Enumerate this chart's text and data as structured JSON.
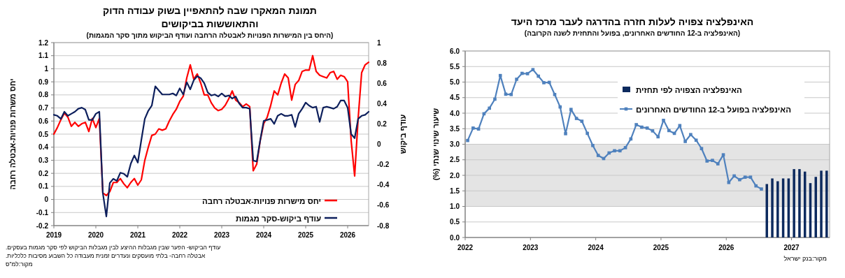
{
  "chart_data": [
    {
      "type": "line",
      "title": "תמונת המאקרו שבה להתאפיין בשוק עבודה הדוק והתאוששות בביקושים",
      "subtitle": "(היחס בין המישרות הפנויות לאבטלה הרחבה ועודף הביקוש מתוך סקר המגמות)",
      "ylabel": "יחס משרות פנויות-אבטלה רחבה",
      "y2label": "עודף ביקוש",
      "x": [
        "2019-01",
        "2019-02",
        "2019-03",
        "2019-04",
        "2019-05",
        "2019-06",
        "2019-07",
        "2019-08",
        "2019-09",
        "2019-10",
        "2019-11",
        "2019-12",
        "2020-01",
        "2020-02",
        "2020-03",
        "2020-04",
        "2020-05",
        "2020-06",
        "2020-07",
        "2020-08",
        "2020-09",
        "2020-10",
        "2020-11",
        "2020-12",
        "2021-01",
        "2021-02",
        "2021-03",
        "2021-04",
        "2021-05",
        "2021-06",
        "2021-07",
        "2021-08",
        "2021-09",
        "2021-10",
        "2021-11",
        "2021-12",
        "2022-01",
        "2022-02",
        "2022-03",
        "2022-04",
        "2022-05",
        "2022-06",
        "2022-07",
        "2022-08",
        "2022-09",
        "2022-10",
        "2022-11",
        "2022-12",
        "2023-01",
        "2023-02",
        "2023-03",
        "2023-04",
        "2023-05",
        "2023-06",
        "2023-07",
        "2023-08",
        "2023-09",
        "2023-10",
        "2023-11",
        "2023-12",
        "2024-01",
        "2024-02",
        "2024-03",
        "2024-04",
        "2024-05",
        "2024-06",
        "2024-07",
        "2024-08",
        "2024-09",
        "2024-10",
        "2024-11",
        "2024-12",
        "2025-01",
        "2025-02",
        "2025-03",
        "2025-04",
        "2025-05",
        "2025-06",
        "2025-07",
        "2025-08",
        "2025-09",
        "2025-10",
        "2025-11",
        "2025-12",
        "2026-01",
        "2026-02",
        "2026-03",
        "2026-04",
        "2026-05",
        "2026-06",
        "2026-07"
      ],
      "series": [
        {
          "name": "יחס מישרות פנויות-אבטלה רחבה",
          "color": "#ff0000",
          "values": [
            0.5,
            0.55,
            0.61,
            0.66,
            0.63,
            0.56,
            0.59,
            0.56,
            0.58,
            0.59,
            0.52,
            0.62,
            0.55,
            0.62,
            0.05,
            0.03,
            0.06,
            0.13,
            0.13,
            0.16,
            0.12,
            0.09,
            0.13,
            0.16,
            0.11,
            0.15,
            0.3,
            0.4,
            0.49,
            0.5,
            0.54,
            0.53,
            0.54,
            0.6,
            0.65,
            0.69,
            0.75,
            0.79,
            0.93,
            1.03,
            0.92,
            0.96,
            0.89,
            0.8,
            0.8,
            0.74,
            0.7,
            0.68,
            0.69,
            0.72,
            0.77,
            0.83,
            0.76,
            0.74,
            0.71,
            0.73,
            0.71,
            0.22,
            0.27,
            0.45,
            0.58,
            0.63,
            0.72,
            0.83,
            0.8,
            0.89,
            0.96,
            0.93,
            0.76,
            0.88,
            0.91,
            0.98,
            0.99,
            0.99,
            1.1,
            0.98,
            0.95,
            0.94,
            0.93,
            0.97,
            0.98,
            0.92,
            0.95,
            0.94,
            0.9,
            0.45,
            0.18,
            0.62,
            0.97,
            1.03,
            1.05
          ]
        },
        {
          "name": "עודף ביקוש-סקר מגמות",
          "color": "#0d1f5c",
          "axis": "y2",
          "values": [
            0.29,
            0.28,
            0.25,
            0.32,
            0.28,
            0.3,
            0.32,
            0.35,
            0.36,
            0.34,
            0.24,
            0.24,
            0.3,
            0.32,
            -0.48,
            -0.71,
            -0.38,
            -0.34,
            -0.36,
            -0.28,
            -0.29,
            -0.32,
            -0.19,
            -0.11,
            -0.18,
            0.04,
            0.25,
            0.33,
            0.38,
            0.57,
            0.53,
            0.49,
            0.49,
            0.49,
            0.5,
            0.48,
            0.55,
            0.49,
            0.61,
            0.54,
            0.63,
            0.67,
            0.65,
            0.6,
            0.51,
            0.48,
            0.49,
            0.47,
            0.5,
            0.47,
            0.48,
            0.45,
            0.47,
            0.4,
            0.36,
            0.36,
            0.35,
            -0.16,
            -0.17,
            0.04,
            0.23,
            0.24,
            0.25,
            0.2,
            0.28,
            0.3,
            0.28,
            0.28,
            0.29,
            0.17,
            0.3,
            0.35,
            0.41,
            0.38,
            0.36,
            0.37,
            0.22,
            0.36,
            0.37,
            0.36,
            0.35,
            0.37,
            0.43,
            0.43,
            0.36,
            0.1,
            0.06,
            0.25,
            0.28,
            0.29,
            0.32
          ]
        }
      ],
      "xlim": [
        "2019-01",
        "2026-07"
      ],
      "xticks": [
        "2019",
        "2020",
        "2021",
        "2022",
        "2023",
        "2024",
        "2025",
        "2026"
      ],
      "ylim": [
        -0.2,
        1.2
      ],
      "yticks": [
        -0.2,
        -0.1,
        0,
        0.1,
        0.2,
        0.3,
        0.4,
        0.5,
        0.6,
        0.7,
        0.8,
        0.9,
        1,
        1.1,
        1.2
      ],
      "y2lim": [
        -0.8,
        1
      ],
      "y2ticks": [
        -0.8,
        -0.6,
        -0.4,
        -0.2,
        0,
        0.2,
        0.4,
        0.6,
        0.8,
        1
      ],
      "grid": "y",
      "legend": "bottom right",
      "annotations": [
        "עודף הביקוש- הפער שבין מגבלות ההיצע לבין מגבלות הביקוש לפי סקר מגמות בעסקים.",
        "אבטלה רחבה- בלתי מועסקים ונעדרים זמנית מעבודה כל השבוע מסיבות כלכליות.",
        "מקור:למ\"ס"
      ]
    },
    {
      "type": "line",
      "title": "האינפלציה צפויה לעלות חזרה בהדרגה לעבר מרכז היעד",
      "subtitle": "(האינפלציה ב-12 החודשים האחרונים, בפועל והתחזית לשנה הקרובה)",
      "ylabel": "שיעור שינוי שנתי (%)",
      "series": [
        {
          "type": "bar",
          "name": "האינפלציה הצפויה לפי תחזית",
          "color": "#0d2a5e",
          "x": [
            "2026-08-15",
            "2026-09-15",
            "2026-10-15",
            "2026-11-15",
            "2026-12-15",
            "2027-01-15",
            "2027-02-15",
            "2027-03-15",
            "2027-04-15",
            "2027-05-15",
            "2027-06-15",
            "2027-07-15"
          ],
          "values": [
            1.72,
            1.9,
            1.81,
            1.9,
            1.9,
            2.2,
            2.2,
            2.12,
            1.75,
            1.95,
            2.15,
            2.15
          ]
        },
        {
          "name": "האינפלציה בפועל ב-12 החודשים האחרונים",
          "color": "#4f81bd",
          "x": [
            "2022-01-15",
            "2022-02-15",
            "2022-03-15",
            "2022-04-15",
            "2022-05-15",
            "2022-06-15",
            "2022-07-15",
            "2022-08-15",
            "2022-09-15",
            "2022-10-15",
            "2022-11-15",
            "2022-12-15",
            "2023-01-15",
            "2023-02-15",
            "2023-03-15",
            "2023-04-15",
            "2023-05-15",
            "2023-06-15",
            "2023-07-15",
            "2023-08-15",
            "2023-09-15",
            "2023-10-15",
            "2023-11-15",
            "2023-12-15",
            "2024-01-15",
            "2024-02-15",
            "2024-03-15",
            "2024-04-15",
            "2024-05-15",
            "2024-06-15",
            "2024-07-15",
            "2024-08-15",
            "2024-09-15",
            "2024-10-15",
            "2024-11-15",
            "2024-12-15",
            "2025-01-15",
            "2025-02-15",
            "2025-03-15",
            "2025-04-15",
            "2025-05-15",
            "2025-06-15",
            "2025-07-15",
            "2025-08-15",
            "2025-09-15",
            "2025-10-15",
            "2025-11-15",
            "2025-12-15",
            "2026-01-15",
            "2026-02-15",
            "2026-03-15",
            "2026-04-15",
            "2026-05-15",
            "2026-06-15",
            "2026-07-15"
          ],
          "values": [
            3.12,
            3.52,
            3.49,
            3.98,
            4.16,
            4.45,
            5.21,
            4.61,
            4.6,
            5.09,
            5.28,
            5.27,
            5.4,
            5.19,
            4.98,
            4.99,
            4.6,
            4.2,
            3.34,
            4.12,
            3.83,
            3.74,
            3.35,
            2.96,
            2.64,
            2.54,
            2.72,
            2.79,
            2.79,
            2.89,
            3.17,
            3.63,
            3.55,
            3.52,
            3.43,
            3.24,
            3.78,
            3.44,
            3.35,
            3.6,
            3.09,
            3.31,
            3.13,
            2.86,
            2.46,
            2.48,
            2.37,
            2.66,
            1.77,
            1.98,
            1.86,
            1.94,
            1.94,
            1.66,
            1.56
          ]
        }
      ],
      "xlim": [
        "2022-01",
        "2027-08"
      ],
      "xticks": [
        "2022",
        "2023",
        "2024",
        "2025",
        "2026",
        "2027"
      ],
      "ylim": [
        0,
        6
      ],
      "yticks": [
        {
          "value": 0,
          "label": "0.0"
        },
        {
          "value": 0.5,
          "label": "0.5"
        },
        {
          "value": 1,
          "label": "1.0"
        },
        {
          "value": 1.5,
          "label": "1.5"
        },
        {
          "value": 2,
          "label": "2.0"
        },
        {
          "value": 2.5,
          "label": "2.5"
        },
        {
          "value": 3,
          "label": "3.0"
        },
        {
          "value": 3.5,
          "label": "3.5"
        },
        {
          "value": 4,
          "label": "4.0"
        },
        {
          "value": 4.5,
          "label": "4.5"
        },
        {
          "value": 5,
          "label": "5.0"
        },
        {
          "value": 5.5,
          "label": "5.5"
        },
        {
          "value": 6,
          "label": "6.0"
        }
      ],
      "bands": [
        {
          "axis": "y",
          "from": 1,
          "to": 3,
          "color": "#e4e4e4"
        }
      ],
      "grid": "y",
      "legend": "top right",
      "marker": "square",
      "annotations": [
        "מקור:בנק ישראל"
      ]
    }
  ]
}
